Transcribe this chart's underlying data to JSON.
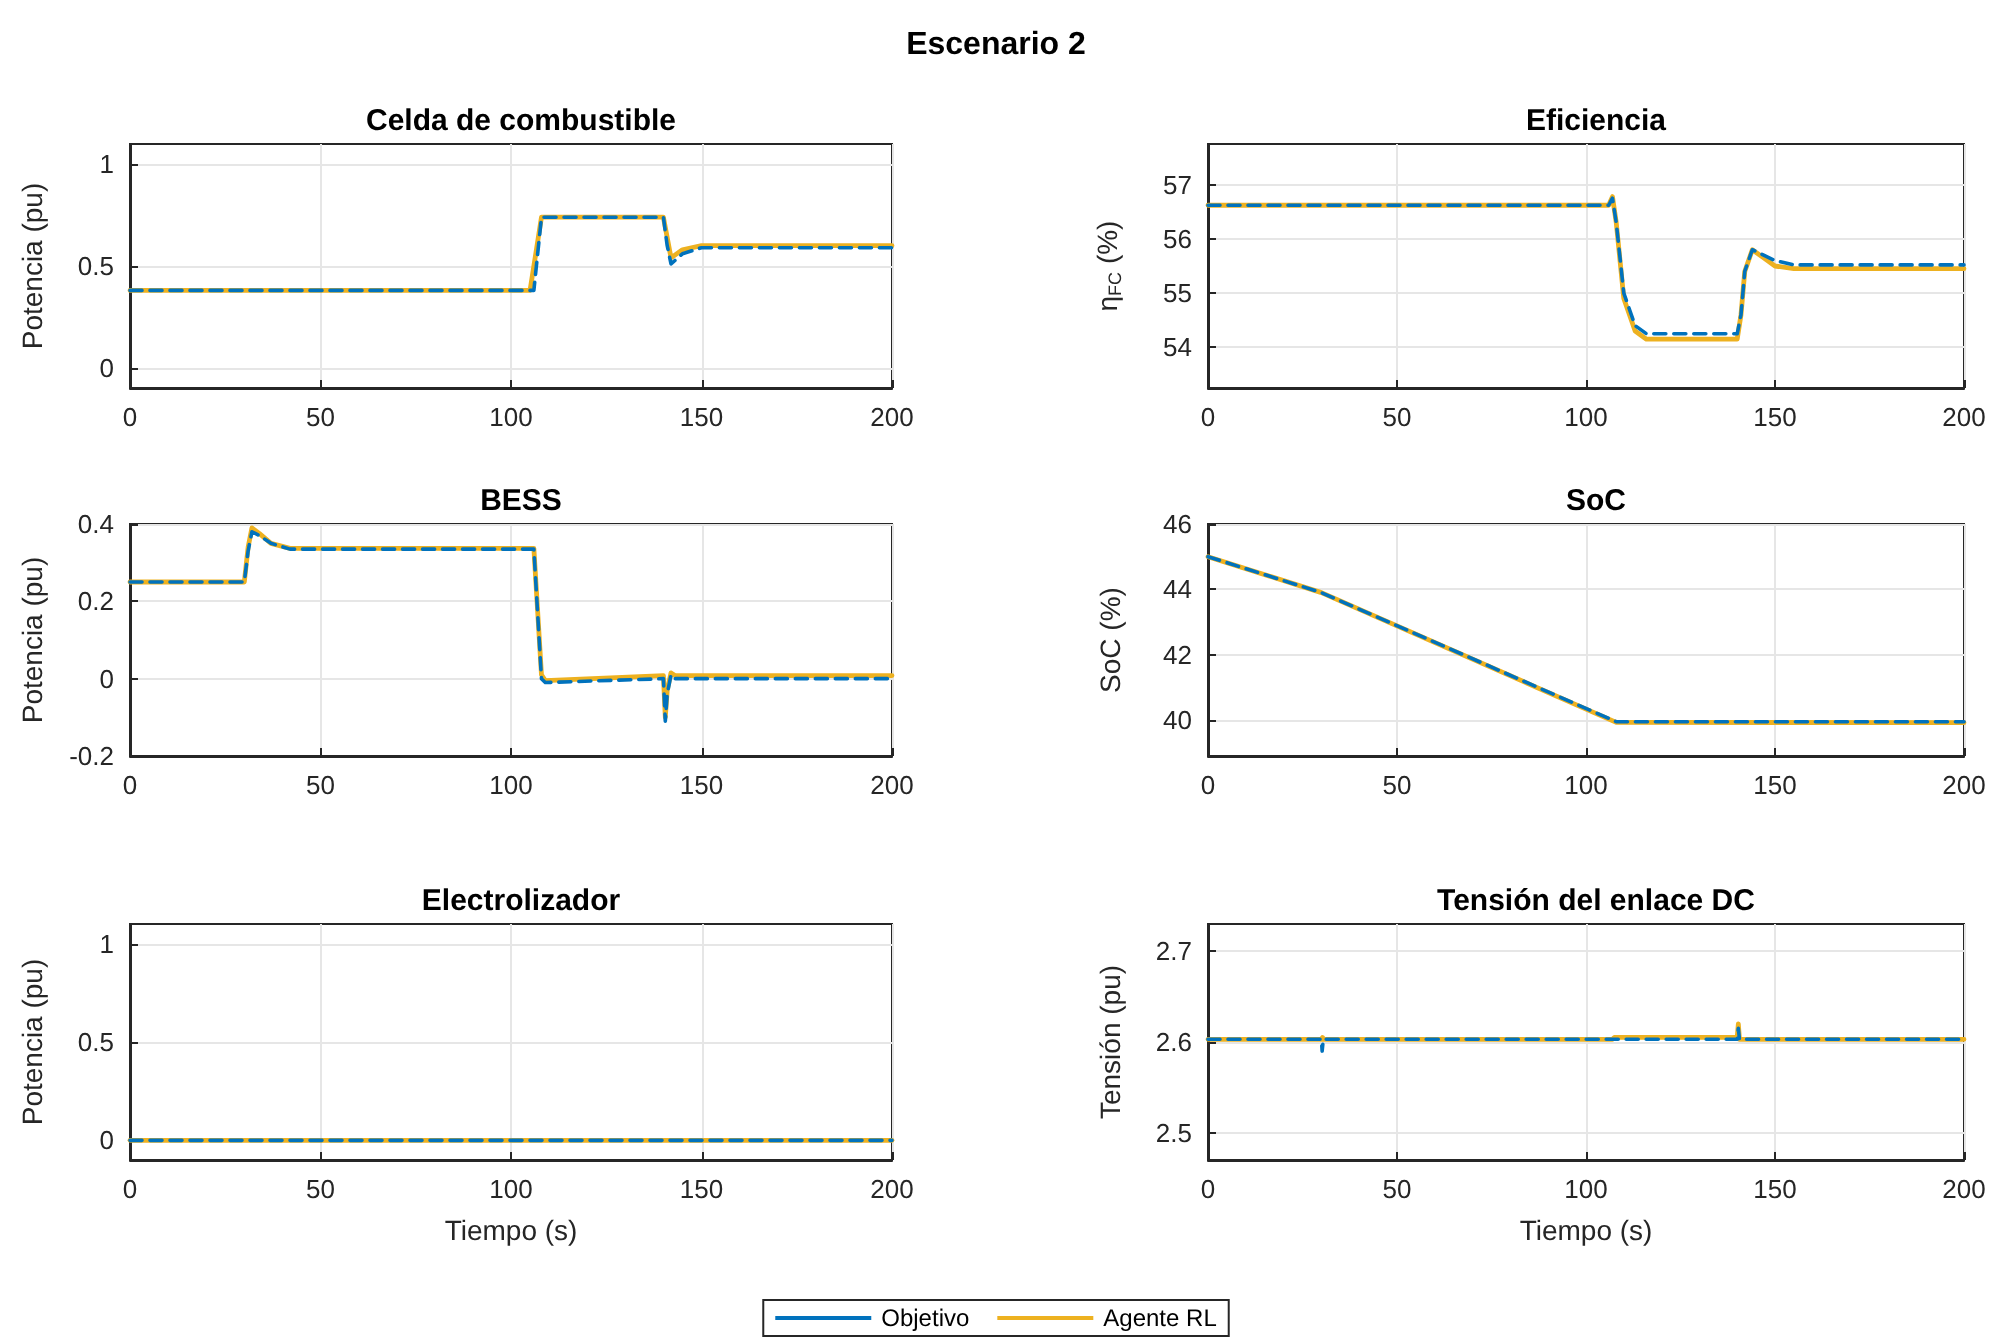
{
  "chart_data": [
    {
      "type": "line",
      "title": "Celda de combustible",
      "ylabel": "Potencia (pu)",
      "annotations": [
        "Escenario 2"
      ],
      "xlim": [
        0,
        200
      ],
      "xticks": [
        0,
        50,
        100,
        150,
        200
      ],
      "ylim": [
        -0.1,
        1.1
      ],
      "yticks": [
        0,
        0.5,
        1
      ],
      "grid": true,
      "legend": false,
      "marker": "none",
      "series": [
        {
          "color": "#edb120",
          "line_style": "solid",
          "x": [
            0,
            105,
            108,
            140,
            142,
            145,
            150,
            200
          ],
          "values": [
            0.38,
            0.38,
            0.74,
            0.74,
            0.54,
            0.58,
            0.6,
            0.6
          ]
        },
        {
          "color": "#0072bd",
          "line_style": "dashed",
          "x": [
            0,
            106,
            108,
            140,
            141,
            142,
            145,
            150,
            200
          ],
          "values": [
            0.38,
            0.38,
            0.74,
            0.74,
            0.6,
            0.51,
            0.56,
            0.59,
            0.59
          ]
        }
      ]
    },
    {
      "type": "line",
      "title": "Eficiencia",
      "ylabel": "η$_{FC}$ (%)",
      "xlim": [
        0,
        200
      ],
      "xticks": [
        0,
        50,
        100,
        150,
        200
      ],
      "ylim": [
        53.25,
        57.75
      ],
      "yticks": [
        54,
        55,
        56,
        57
      ],
      "grid": true,
      "legend": false,
      "marker": "none",
      "series": [
        {
          "color": "#edb120",
          "line_style": "solid",
          "x": [
            0,
            106,
            107,
            108,
            110,
            113,
            116,
            140,
            141,
            142,
            144,
            147,
            150,
            155,
            200
          ],
          "values": [
            56.62,
            56.62,
            56.78,
            56.3,
            54.9,
            54.3,
            54.15,
            54.15,
            54.6,
            55.4,
            55.8,
            55.65,
            55.5,
            55.45,
            55.45
          ]
        },
        {
          "color": "#0072bd",
          "line_style": "dashed",
          "x": [
            0,
            106,
            107,
            108,
            110,
            113,
            116,
            140,
            141,
            142,
            144,
            147,
            150,
            155,
            200
          ],
          "values": [
            56.62,
            56.62,
            56.75,
            56.3,
            55,
            54.4,
            54.25,
            54.25,
            54.6,
            55.4,
            55.8,
            55.7,
            55.6,
            55.52,
            55.52
          ]
        }
      ]
    },
    {
      "type": "line",
      "title": "BESS",
      "ylabel": "Potencia (pu)",
      "xlim": [
        0,
        200
      ],
      "xticks": [
        0,
        50,
        100,
        150,
        200
      ],
      "ylim": [
        -0.2,
        0.4
      ],
      "yticks": [
        -0.2,
        0,
        0.2,
        0.4
      ],
      "grid": true,
      "legend": false,
      "marker": "none",
      "series": [
        {
          "color": "#edb120",
          "line_style": "solid",
          "x": [
            0,
            30,
            31,
            32,
            34,
            37,
            42,
            106,
            108,
            109,
            140,
            140.5,
            141,
            142,
            143,
            200
          ],
          "values": [
            0.25,
            0.25,
            0.34,
            0.39,
            0.375,
            0.35,
            0.337,
            0.337,
            0.01,
            -0.005,
            0.008,
            -0.1,
            -0.03,
            0.015,
            0.008,
            0.008
          ]
        },
        {
          "color": "#0072bd",
          "line_style": "dashed",
          "x": [
            0,
            30,
            31,
            32,
            34,
            37,
            42,
            106,
            108,
            109,
            140,
            140.5,
            141,
            142,
            143,
            200
          ],
          "values": [
            0.25,
            0.25,
            0.33,
            0.38,
            0.37,
            0.35,
            0.335,
            0.335,
            0,
            -0.01,
            0,
            -0.11,
            -0.04,
            0.01,
            0,
            0
          ]
        }
      ]
    },
    {
      "type": "line",
      "title": "SoC",
      "ylabel": "SoC (%)",
      "xlim": [
        0,
        200
      ],
      "xticks": [
        0,
        50,
        100,
        150,
        200
      ],
      "ylim": [
        38.9,
        46
      ],
      "yticks": [
        40,
        42,
        44,
        46
      ],
      "grid": true,
      "legend": false,
      "marker": "none",
      "series": [
        {
          "color": "#edb120",
          "line_style": "solid",
          "x": [
            0,
            30,
            108,
            200
          ],
          "values": [
            45,
            43.9,
            39.93,
            39.92
          ]
        },
        {
          "color": "#0072bd",
          "line_style": "dashed",
          "x": [
            0,
            30,
            108,
            200
          ],
          "values": [
            45,
            43.9,
            39.95,
            39.95
          ]
        }
      ]
    },
    {
      "type": "line",
      "title": "Electrolizador",
      "xlabel": "Tiempo (s)",
      "ylabel": "Potencia (pu)",
      "xlim": [
        0,
        200
      ],
      "xticks": [
        0,
        50,
        100,
        150,
        200
      ],
      "ylim": [
        -0.1,
        1.1
      ],
      "yticks": [
        0,
        0.5,
        1
      ],
      "grid": true,
      "legend": false,
      "marker": "none",
      "series": [
        {
          "color": "#edb120",
          "line_style": "solid",
          "x": [
            0,
            200
          ],
          "values": [
            0,
            0
          ]
        },
        {
          "color": "#0072bd",
          "line_style": "dashed",
          "x": [
            0,
            200
          ],
          "values": [
            0,
            0
          ]
        }
      ]
    },
    {
      "type": "line",
      "title": "Tensión del enlace DC",
      "xlabel": "Tiempo (s)",
      "ylabel": "Tensión (pu)",
      "xlim": [
        0,
        200
      ],
      "xticks": [
        0,
        50,
        100,
        150,
        200
      ],
      "ylim": [
        2.47,
        2.73
      ],
      "yticks": [
        2.5,
        2.6,
        2.7
      ],
      "grid": true,
      "legend": "bottom",
      "marker": "none",
      "series": [
        {
          "name": "Agente RL",
          "color": "#edb120",
          "line_style": "solid",
          "x": [
            0,
            30,
            30.3,
            30.6,
            107,
            107.5,
            140,
            140.3,
            140.6,
            200
          ],
          "values": [
            2.603,
            2.603,
            2.605,
            2.603,
            2.603,
            2.605,
            2.605,
            2.62,
            2.603,
            2.603
          ]
        },
        {
          "name": "Objetivo",
          "color": "#0072bd",
          "line_style": "dashed",
          "x": [
            0,
            30,
            30.2,
            30.5,
            140,
            140.3,
            140.6,
            200
          ],
          "values": [
            2.603,
            2.603,
            2.59,
            2.603,
            2.603,
            2.615,
            2.603,
            2.603
          ]
        }
      ]
    }
  ]
}
